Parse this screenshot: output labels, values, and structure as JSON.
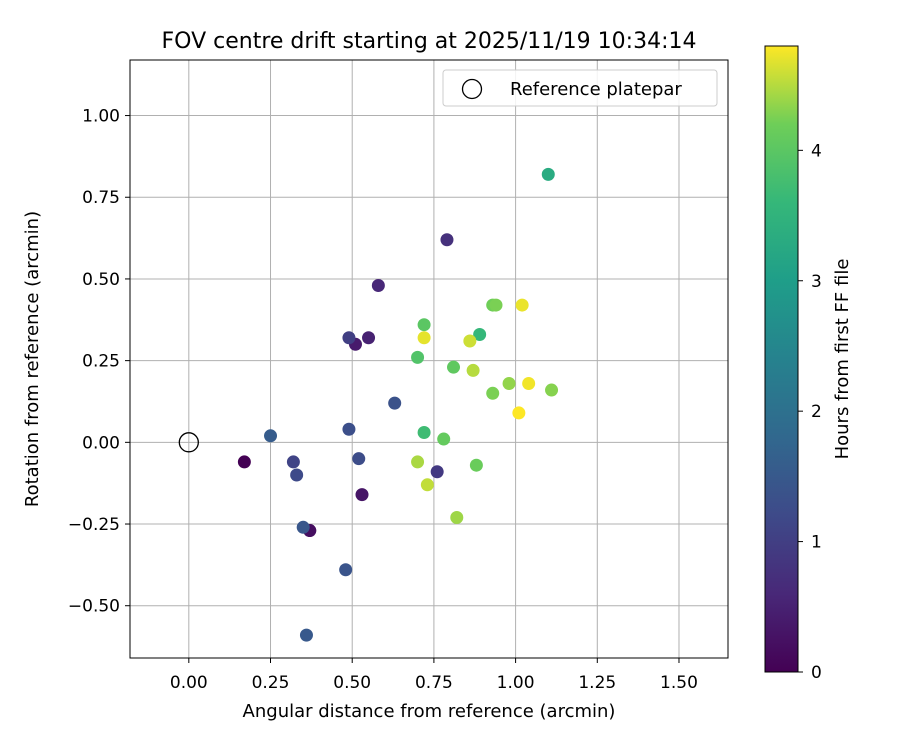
{
  "chart_data": {
    "type": "scatter",
    "title": "FOV centre drift starting at 2025/11/19 10:34:14",
    "xlabel": "Angular distance from reference (arcmin)",
    "ylabel": "Rotation from reference (arcmin)",
    "xlim": [
      -0.18,
      1.65
    ],
    "ylim": [
      -0.66,
      1.17
    ],
    "xticks": [
      0.0,
      0.25,
      0.5,
      0.75,
      1.0,
      1.25,
      1.5
    ],
    "xtick_labels": [
      "0.00",
      "0.25",
      "0.50",
      "0.75",
      "1.00",
      "1.25",
      "1.50"
    ],
    "yticks": [
      -0.5,
      -0.25,
      0.0,
      0.25,
      0.5,
      0.75,
      1.0
    ],
    "ytick_labels": [
      "−0.50",
      "−0.25",
      "0.00",
      "0.25",
      "0.50",
      "0.75",
      "1.00"
    ],
    "grid": true,
    "legend": {
      "position": "top-right",
      "label": "Reference platepar"
    },
    "reference_point": {
      "x": 0.0,
      "y": 0.0
    },
    "colorbar": {
      "label": "Hours from first FF file",
      "min": 0,
      "max": 4.8,
      "ticks": [
        0,
        1,
        2,
        3,
        4
      ],
      "tick_labels": [
        "0",
        "1",
        "2",
        "3",
        "4"
      ],
      "colormap": "viridis"
    },
    "points": [
      {
        "x": 0.17,
        "y": -0.06,
        "h": 0.0
      },
      {
        "x": 0.37,
        "y": -0.27,
        "h": 0.1
      },
      {
        "x": 0.37,
        "y": -0.27,
        "h": 0.2
      },
      {
        "x": 0.53,
        "y": -0.16,
        "h": 0.3
      },
      {
        "x": 0.51,
        "y": 0.3,
        "h": 0.4
      },
      {
        "x": 0.55,
        "y": 0.32,
        "h": 0.5
      },
      {
        "x": 0.58,
        "y": 0.48,
        "h": 0.6
      },
      {
        "x": 0.79,
        "y": 0.62,
        "h": 0.75
      },
      {
        "x": 0.76,
        "y": -0.09,
        "h": 0.9
      },
      {
        "x": 0.49,
        "y": 0.32,
        "h": 1.0
      },
      {
        "x": 0.32,
        "y": -0.06,
        "h": 1.1
      },
      {
        "x": 0.33,
        "y": -0.1,
        "h": 1.2
      },
      {
        "x": 0.52,
        "y": -0.05,
        "h": 1.25
      },
      {
        "x": 0.49,
        "y": 0.04,
        "h": 1.3
      },
      {
        "x": 0.63,
        "y": 0.12,
        "h": 1.35
      },
      {
        "x": 0.48,
        "y": -0.39,
        "h": 1.4
      },
      {
        "x": 0.35,
        "y": -0.26,
        "h": 1.45
      },
      {
        "x": 0.36,
        "y": -0.59,
        "h": 1.5
      },
      {
        "x": 0.25,
        "y": 0.02,
        "h": 1.55
      },
      {
        "x": 1.1,
        "y": 0.82,
        "h": 3.3
      },
      {
        "x": 0.89,
        "y": 0.33,
        "h": 3.6
      },
      {
        "x": 0.72,
        "y": 0.03,
        "h": 3.7
      },
      {
        "x": 0.7,
        "y": 0.26,
        "h": 3.9
      },
      {
        "x": 0.72,
        "y": 0.36,
        "h": 4.0
      },
      {
        "x": 0.81,
        "y": 0.23,
        "h": 4.05
      },
      {
        "x": 0.78,
        "y": 0.01,
        "h": 4.1
      },
      {
        "x": 0.88,
        "y": -0.07,
        "h": 4.15
      },
      {
        "x": 0.93,
        "y": 0.42,
        "h": 4.2
      },
      {
        "x": 0.94,
        "y": 0.42,
        "h": 4.25
      },
      {
        "x": 0.93,
        "y": 0.15,
        "h": 4.25
      },
      {
        "x": 1.11,
        "y": 0.16,
        "h": 4.3
      },
      {
        "x": 0.98,
        "y": 0.18,
        "h": 4.35
      },
      {
        "x": 0.82,
        "y": -0.23,
        "h": 4.4
      },
      {
        "x": 0.7,
        "y": -0.06,
        "h": 4.45
      },
      {
        "x": 0.87,
        "y": 0.22,
        "h": 4.5
      },
      {
        "x": 0.73,
        "y": -0.13,
        "h": 4.55
      },
      {
        "x": 0.86,
        "y": 0.31,
        "h": 4.6
      },
      {
        "x": 0.72,
        "y": 0.32,
        "h": 4.7
      },
      {
        "x": 1.02,
        "y": 0.42,
        "h": 4.72
      },
      {
        "x": 1.04,
        "y": 0.18,
        "h": 4.75
      },
      {
        "x": 1.01,
        "y": 0.09,
        "h": 4.8
      }
    ]
  }
}
